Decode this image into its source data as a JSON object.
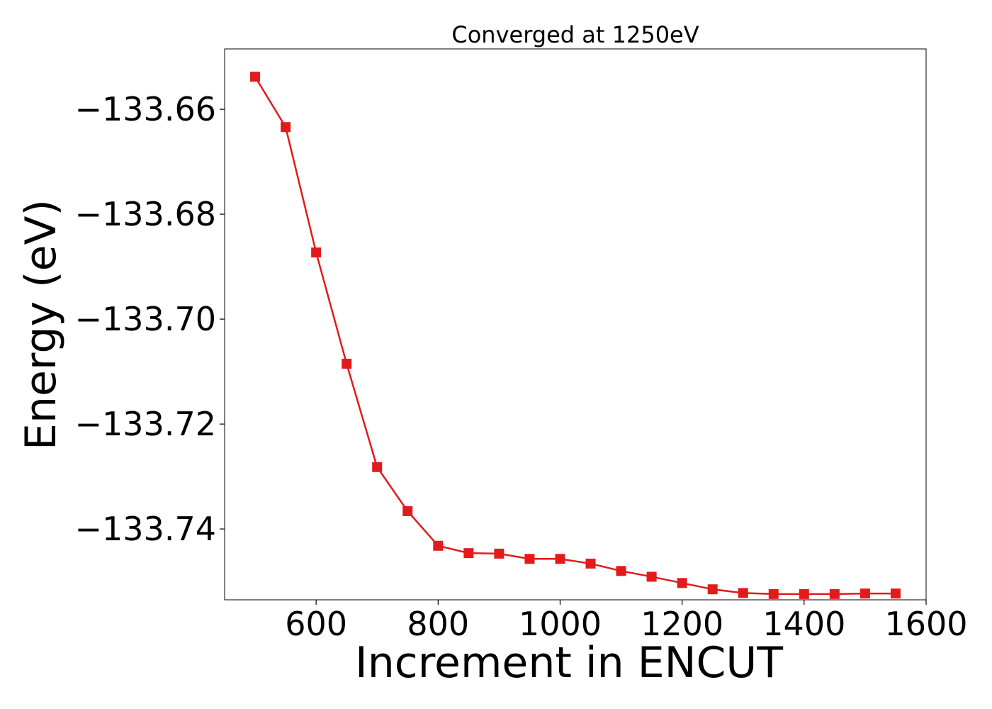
{
  "chart_data": {
    "type": "line",
    "title": "Converged at 1250eV",
    "xlabel": "Increment in ENCUT",
    "ylabel": "Energy (eV)",
    "xlim": [
      450,
      1600
    ],
    "ylim": [
      -133.7535,
      -133.6485
    ],
    "xticks": [
      600,
      800,
      1000,
      1200,
      1400,
      1600
    ],
    "xtick_labels": [
      "600",
      "800",
      "1000",
      "1200",
      "1400",
      "1600"
    ],
    "yticks": [
      -133.66,
      -133.68,
      -133.7,
      -133.72,
      -133.74
    ],
    "ytick_labels": [
      "−133.66",
      "−133.68",
      "−133.70",
      "−133.72",
      "−133.74"
    ],
    "grid": false,
    "color": "#e31a1c",
    "marker": "square",
    "x": [
      500,
      550,
      600,
      650,
      700,
      750,
      800,
      850,
      900,
      950,
      1000,
      1050,
      1100,
      1150,
      1200,
      1250,
      1300,
      1350,
      1400,
      1450,
      1500,
      1550
    ],
    "y": [
      -133.6538,
      -133.6634,
      -133.6873,
      -133.7085,
      -133.7282,
      -133.7366,
      -133.7432,
      -133.7446,
      -133.7447,
      -133.7457,
      -133.7457,
      -133.7466,
      -133.748,
      -133.7491,
      -133.7503,
      -133.7515,
      -133.7522,
      -133.7524,
      -133.7524,
      -133.7524,
      -133.7523,
      -133.7523
    ]
  }
}
